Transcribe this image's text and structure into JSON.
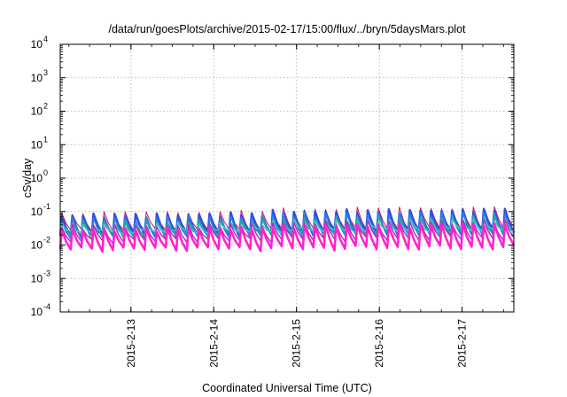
{
  "chart_data": {
    "type": "line",
    "title": "/data/run/goesPlots/archive/2015-02-17/15:00/flux/../bryn/5daysMars.plot",
    "xlabel": "Coordinated Universal Time (UTC)",
    "ylabel": "cSv/day",
    "y_scale": "log",
    "ylim": [
      0.0001,
      10000
    ],
    "y_ticks": [
      {
        "mant": "10",
        "exp": "-4"
      },
      {
        "mant": "10",
        "exp": "-3"
      },
      {
        "mant": "10",
        "exp": "-2"
      },
      {
        "mant": "10",
        "exp": "-1"
      },
      {
        "mant": "10",
        "exp": "0"
      },
      {
        "mant": "10",
        "exp": "1"
      },
      {
        "mant": "10",
        "exp": "2"
      },
      {
        "mant": "10",
        "exp": "3"
      },
      {
        "mant": "10",
        "exp": "4"
      }
    ],
    "xlim": [
      "2015-02-12 03:30",
      "2015-02-17 15:00"
    ],
    "x_ticks": [
      "2015-2-13",
      "2015-2-14",
      "2015-2-15",
      "2015-2-16",
      "2015-2-17"
    ],
    "grid": true,
    "pattern": "sawtooth, 43 cycles, sharp rise then decay, spread of nested curves",
    "series": [
      {
        "color": "#cc1060",
        "low": [
          0.026,
          0.03
        ],
        "high": [
          0.085,
          0.11
        ],
        "width": 1.0
      },
      {
        "color": "#8a2aa0",
        "low": [
          0.016,
          0.022
        ],
        "high": [
          0.07,
          0.09
        ],
        "width": 1.0
      },
      {
        "color": "#3050e0",
        "low": [
          0.02,
          0.026
        ],
        "high": [
          0.075,
          0.095
        ],
        "width": 2.5
      },
      {
        "color": "#2a80e8",
        "low": [
          0.018,
          0.022
        ],
        "high": [
          0.06,
          0.078
        ],
        "width": 1.5
      },
      {
        "color": "#20a8a0",
        "low": [
          0.02,
          0.024
        ],
        "high": [
          0.045,
          0.058
        ],
        "width": 2.0
      },
      {
        "color": "#40c8c8",
        "low": [
          0.024,
          0.028
        ],
        "high": [
          0.038,
          0.048
        ],
        "width": 1.5
      },
      {
        "color": "#b030c0",
        "low": [
          0.013,
          0.016
        ],
        "high": [
          0.035,
          0.045
        ],
        "width": 1.5
      },
      {
        "color": "#ff20d0",
        "low": [
          0.0075,
          0.0085
        ],
        "high": [
          0.028,
          0.036
        ],
        "width": 2.5
      }
    ]
  }
}
